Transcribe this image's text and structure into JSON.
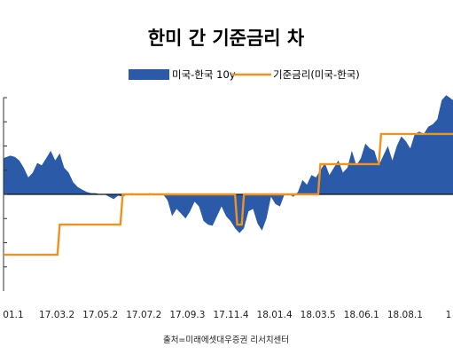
{
  "chart_data": {
    "type": "area",
    "title": "한미 간 기준금리 차",
    "source": "출처=미래에셋대우증권 리서치센터",
    "legend_position": "top",
    "x_tick_labels": [
      "01.1",
      "17.03.2",
      "17.05.2",
      "17.07.2",
      "17.09.3",
      "17.11.4",
      "18.01.4",
      "18.03.5",
      "18.06.1",
      "18.08.1",
      "1"
    ],
    "x_range": [
      0,
      100
    ],
    "y_range": [
      -0.8,
      0.8
    ],
    "y_ticks": [
      -0.6,
      -0.4,
      -0.2,
      0,
      0.2,
      0.4,
      0.6,
      0.8
    ],
    "grid": false,
    "series": [
      {
        "name": "미국-한국 10y",
        "kind": "area",
        "color": "#2a5aa8",
        "x": [
          0,
          1.5,
          2.5,
          3.5,
          4.5,
          5.5,
          6.5,
          7.5,
          8.5,
          9.5,
          10.5,
          11.5,
          12.5,
          13.5,
          14.5,
          15.5,
          16.5,
          17.5,
          18.5,
          19.5,
          20.5,
          21.5,
          22.5,
          23.5,
          24.5,
          25.5,
          26.5,
          27.5,
          28.5,
          29.5,
          30.5,
          31.5,
          32.5,
          33.5,
          34.5,
          35.5,
          36.5,
          37.5,
          38.5,
          39.5,
          40.5,
          41.5,
          42.5,
          43.5,
          44.5,
          45.5,
          46.5,
          47.5,
          48.5,
          49.5,
          50.5,
          51.5,
          52.5,
          53.5,
          54.5,
          55.5,
          56.5,
          57.5,
          58.5,
          59.5,
          60.5,
          61.5,
          62.5,
          63.5,
          64.5,
          65.5,
          66.5,
          67.5,
          68.5,
          69.5,
          70.5,
          71.5,
          72.5,
          73.5,
          74.5,
          75.5,
          76.5,
          77.5,
          78.5,
          79.5,
          80.5,
          81.5,
          82.5,
          83.5,
          84.5,
          85.5,
          86.5,
          87.5,
          88.5,
          89.5,
          90.5,
          91.5,
          92.5,
          93.5,
          94.5,
          95.5,
          96.5,
          97.5,
          98.5,
          100
        ],
        "values": [
          0.3,
          0.32,
          0.31,
          0.28,
          0.22,
          0.14,
          0.18,
          0.26,
          0.24,
          0.3,
          0.36,
          0.28,
          0.34,
          0.22,
          0.18,
          0.1,
          0.06,
          0.04,
          0.02,
          0.01,
          0.01,
          0.0,
          0.0,
          -0.02,
          -0.04,
          -0.01,
          -0.02,
          0.0,
          0.01,
          0.0,
          0.0,
          0.0,
          0.01,
          0.0,
          0.0,
          0.0,
          -0.05,
          -0.18,
          -0.12,
          -0.16,
          -0.2,
          -0.14,
          -0.06,
          -0.1,
          -0.22,
          -0.25,
          -0.26,
          -0.18,
          -0.1,
          -0.18,
          -0.22,
          -0.28,
          -0.32,
          -0.28,
          -0.14,
          -0.12,
          -0.24,
          -0.3,
          -0.2,
          -0.02,
          -0.08,
          -0.1,
          0.0,
          0.0,
          -0.02,
          0.02,
          0.12,
          0.08,
          0.16,
          0.14,
          0.2,
          0.26,
          0.16,
          0.22,
          0.28,
          0.18,
          0.22,
          0.36,
          0.24,
          0.3,
          0.42,
          0.38,
          0.36,
          0.24,
          0.32,
          0.4,
          0.28,
          0.4,
          0.48,
          0.44,
          0.38,
          0.5,
          0.52,
          0.5,
          0.56,
          0.58,
          0.62,
          0.78,
          0.82,
          0.78
        ]
      },
      {
        "name": "기준금리(미국-한국)",
        "kind": "step",
        "color": "#f0921e",
        "x": [
          0,
          12,
          12.5,
          26,
          26.5,
          51.5,
          52,
          53,
          53.5,
          70,
          70.5,
          83.5,
          84,
          100
        ],
        "values": [
          -0.5,
          -0.5,
          -0.25,
          -0.25,
          0.0,
          0.0,
          -0.25,
          -0.25,
          0.0,
          0.0,
          0.25,
          0.25,
          0.5,
          0.5
        ]
      }
    ]
  }
}
